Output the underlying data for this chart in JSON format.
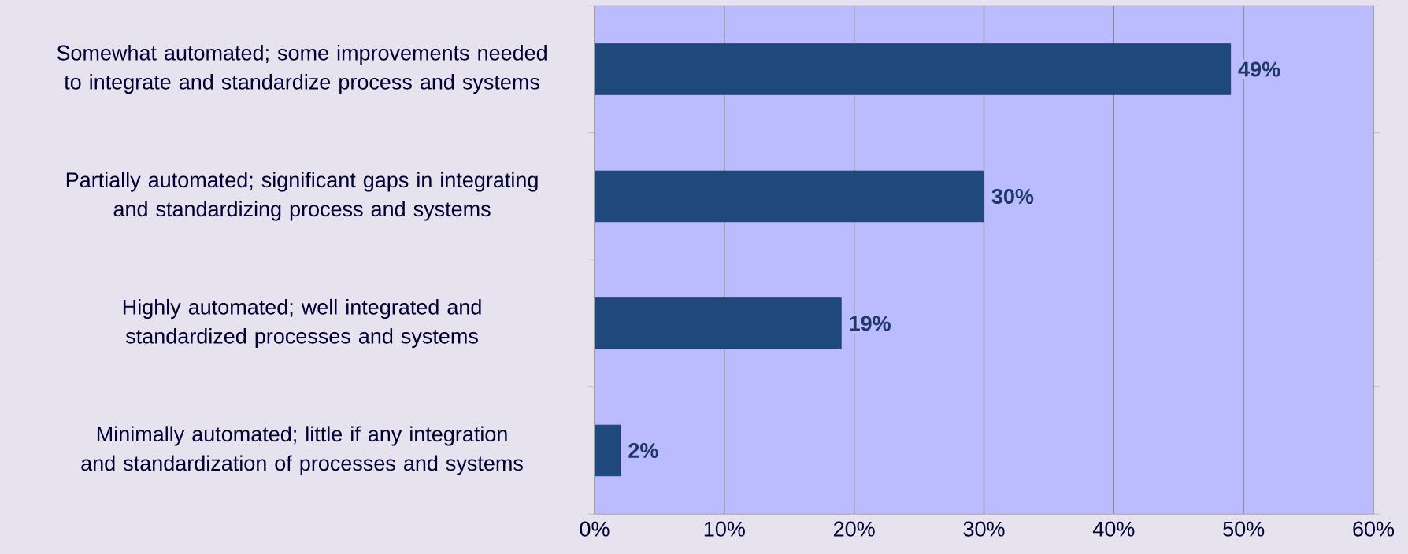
{
  "chart_data": {
    "type": "bar",
    "orientation": "horizontal",
    "categories": [
      "Somewhat automated; some improvements needed to integrate and standardize process and systems",
      "Partially automated; significant gaps in integrating and standardizing process and systems",
      "Highly automated; well integrated and standardized processes and systems",
      "Minimally automated; little if any integration and standardization of processes and systems"
    ],
    "values": [
      49,
      30,
      19,
      2
    ],
    "value_labels": [
      "49%",
      "30%",
      "19%",
      "2%"
    ],
    "color": "#1f497d",
    "xlim": [
      0,
      60
    ],
    "xticks": [
      {
        "value": 0,
        "label": "0%"
      },
      {
        "value": 10,
        "label": "10%"
      },
      {
        "value": 20,
        "label": "20%"
      },
      {
        "value": 30,
        "label": "30%"
      },
      {
        "value": 40,
        "label": "40%"
      },
      {
        "value": 50,
        "label": "50%"
      },
      {
        "value": 60,
        "label": "60%"
      }
    ],
    "grid": "x"
  }
}
